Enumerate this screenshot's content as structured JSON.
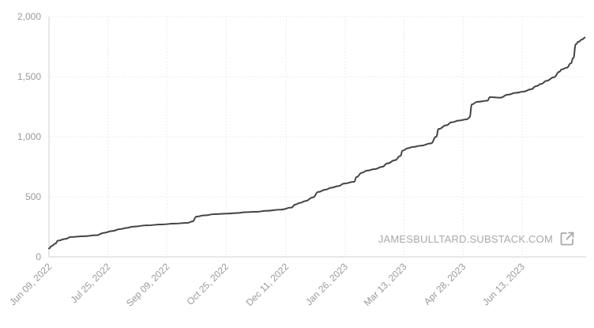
{
  "watermark": {
    "text": "JAMESBULLTARD.SUBSTACK.COM",
    "icon": "external-link-icon"
  },
  "colors": {
    "line": "#444444",
    "grid": "#ececec",
    "axis": "#cfcfcf",
    "tick_text": "#9a9a9a"
  },
  "chart_data": {
    "type": "line",
    "title": "",
    "xlabel": "",
    "ylabel": "",
    "ylim": [
      0,
      2000
    ],
    "yticks": [
      {
        "value": 0,
        "label": "0"
      },
      {
        "value": 500,
        "label": "500"
      },
      {
        "value": 1000,
        "label": "1,000"
      },
      {
        "value": 1500,
        "label": "1,500"
      },
      {
        "value": 2000,
        "label": "2,000"
      }
    ],
    "xlim": [
      "2022-06-09",
      "2023-08-01"
    ],
    "xticks": [
      {
        "date": "2022-06-09",
        "label": "Jun 09, 2022"
      },
      {
        "date": "2022-07-25",
        "label": "Jul 25, 2022"
      },
      {
        "date": "2022-09-09",
        "label": "Sep 09, 2022"
      },
      {
        "date": "2022-10-25",
        "label": "Oct 25, 2022"
      },
      {
        "date": "2022-12-11",
        "label": "Dec 11, 2022"
      },
      {
        "date": "2023-01-26",
        "label": "Jan 26, 2023"
      },
      {
        "date": "2023-03-13",
        "label": "Mar 13, 2023"
      },
      {
        "date": "2023-04-28",
        "label": "Apr 28, 2023"
      },
      {
        "date": "2023-06-13",
        "label": "Jun 13, 2023"
      }
    ],
    "grid": true,
    "series": [
      {
        "name": "",
        "points": [
          [
            "2022-06-09",
            70
          ],
          [
            "2022-06-11",
            90
          ],
          [
            "2022-06-14",
            110
          ],
          [
            "2022-06-16",
            135
          ],
          [
            "2022-06-22",
            150
          ],
          [
            "2022-06-26",
            165
          ],
          [
            "2022-07-06",
            172
          ],
          [
            "2022-07-16",
            180
          ],
          [
            "2022-07-22",
            200
          ],
          [
            "2022-07-28",
            215
          ],
          [
            "2022-08-04",
            232
          ],
          [
            "2022-08-08",
            240
          ],
          [
            "2022-08-14",
            252
          ],
          [
            "2022-08-24",
            262
          ],
          [
            "2022-09-05",
            270
          ],
          [
            "2022-09-15",
            277
          ],
          [
            "2022-09-25",
            283
          ],
          [
            "2022-09-29",
            295
          ],
          [
            "2022-10-02",
            335
          ],
          [
            "2022-10-08",
            345
          ],
          [
            "2022-10-16",
            355
          ],
          [
            "2022-10-26",
            360
          ],
          [
            "2022-11-03",
            365
          ],
          [
            "2022-11-09",
            372
          ],
          [
            "2022-11-19",
            376
          ],
          [
            "2022-11-25",
            383
          ],
          [
            "2022-12-07",
            393
          ],
          [
            "2022-12-15",
            410
          ],
          [
            "2022-12-18",
            435
          ],
          [
            "2022-12-22",
            450
          ],
          [
            "2022-12-26",
            465
          ],
          [
            "2023-01-01",
            495
          ],
          [
            "2023-01-05",
            540
          ],
          [
            "2023-01-11",
            560
          ],
          [
            "2023-01-15",
            575
          ],
          [
            "2023-01-21",
            590
          ],
          [
            "2023-01-25",
            610
          ],
          [
            "2023-02-02",
            625
          ],
          [
            "2023-02-04",
            665
          ],
          [
            "2023-02-08",
            700
          ],
          [
            "2023-02-12",
            718
          ],
          [
            "2023-02-18",
            730
          ],
          [
            "2023-02-24",
            750
          ],
          [
            "2023-02-28",
            778
          ],
          [
            "2023-03-06",
            805
          ],
          [
            "2023-03-10",
            840
          ],
          [
            "2023-03-12",
            885
          ],
          [
            "2023-03-16",
            905
          ],
          [
            "2023-03-20",
            915
          ],
          [
            "2023-03-26",
            925
          ],
          [
            "2023-04-03",
            945
          ],
          [
            "2023-04-07",
            1000
          ],
          [
            "2023-04-09",
            1065
          ],
          [
            "2023-04-15",
            1095
          ],
          [
            "2023-04-19",
            1120
          ],
          [
            "2023-04-25",
            1135
          ],
          [
            "2023-05-01",
            1145
          ],
          [
            "2023-05-03",
            1160
          ],
          [
            "2023-05-05",
            1270
          ],
          [
            "2023-05-09",
            1290
          ],
          [
            "2023-05-17",
            1300
          ],
          [
            "2023-05-19",
            1330
          ],
          [
            "2023-05-27",
            1325
          ],
          [
            "2023-06-02",
            1350
          ],
          [
            "2023-06-08",
            1365
          ],
          [
            "2023-06-14",
            1375
          ],
          [
            "2023-06-20",
            1395
          ],
          [
            "2023-06-24",
            1420
          ],
          [
            "2023-06-28",
            1440
          ],
          [
            "2023-07-02",
            1465
          ],
          [
            "2023-07-08",
            1495
          ],
          [
            "2023-07-12",
            1540
          ],
          [
            "2023-07-14",
            1560
          ],
          [
            "2023-07-18",
            1575
          ],
          [
            "2023-07-21",
            1610
          ],
          [
            "2023-07-23",
            1655
          ],
          [
            "2023-07-25",
            1770
          ],
          [
            "2023-07-27",
            1790
          ],
          [
            "2023-07-30",
            1810
          ],
          [
            "2023-08-01",
            1825
          ]
        ]
      }
    ]
  }
}
